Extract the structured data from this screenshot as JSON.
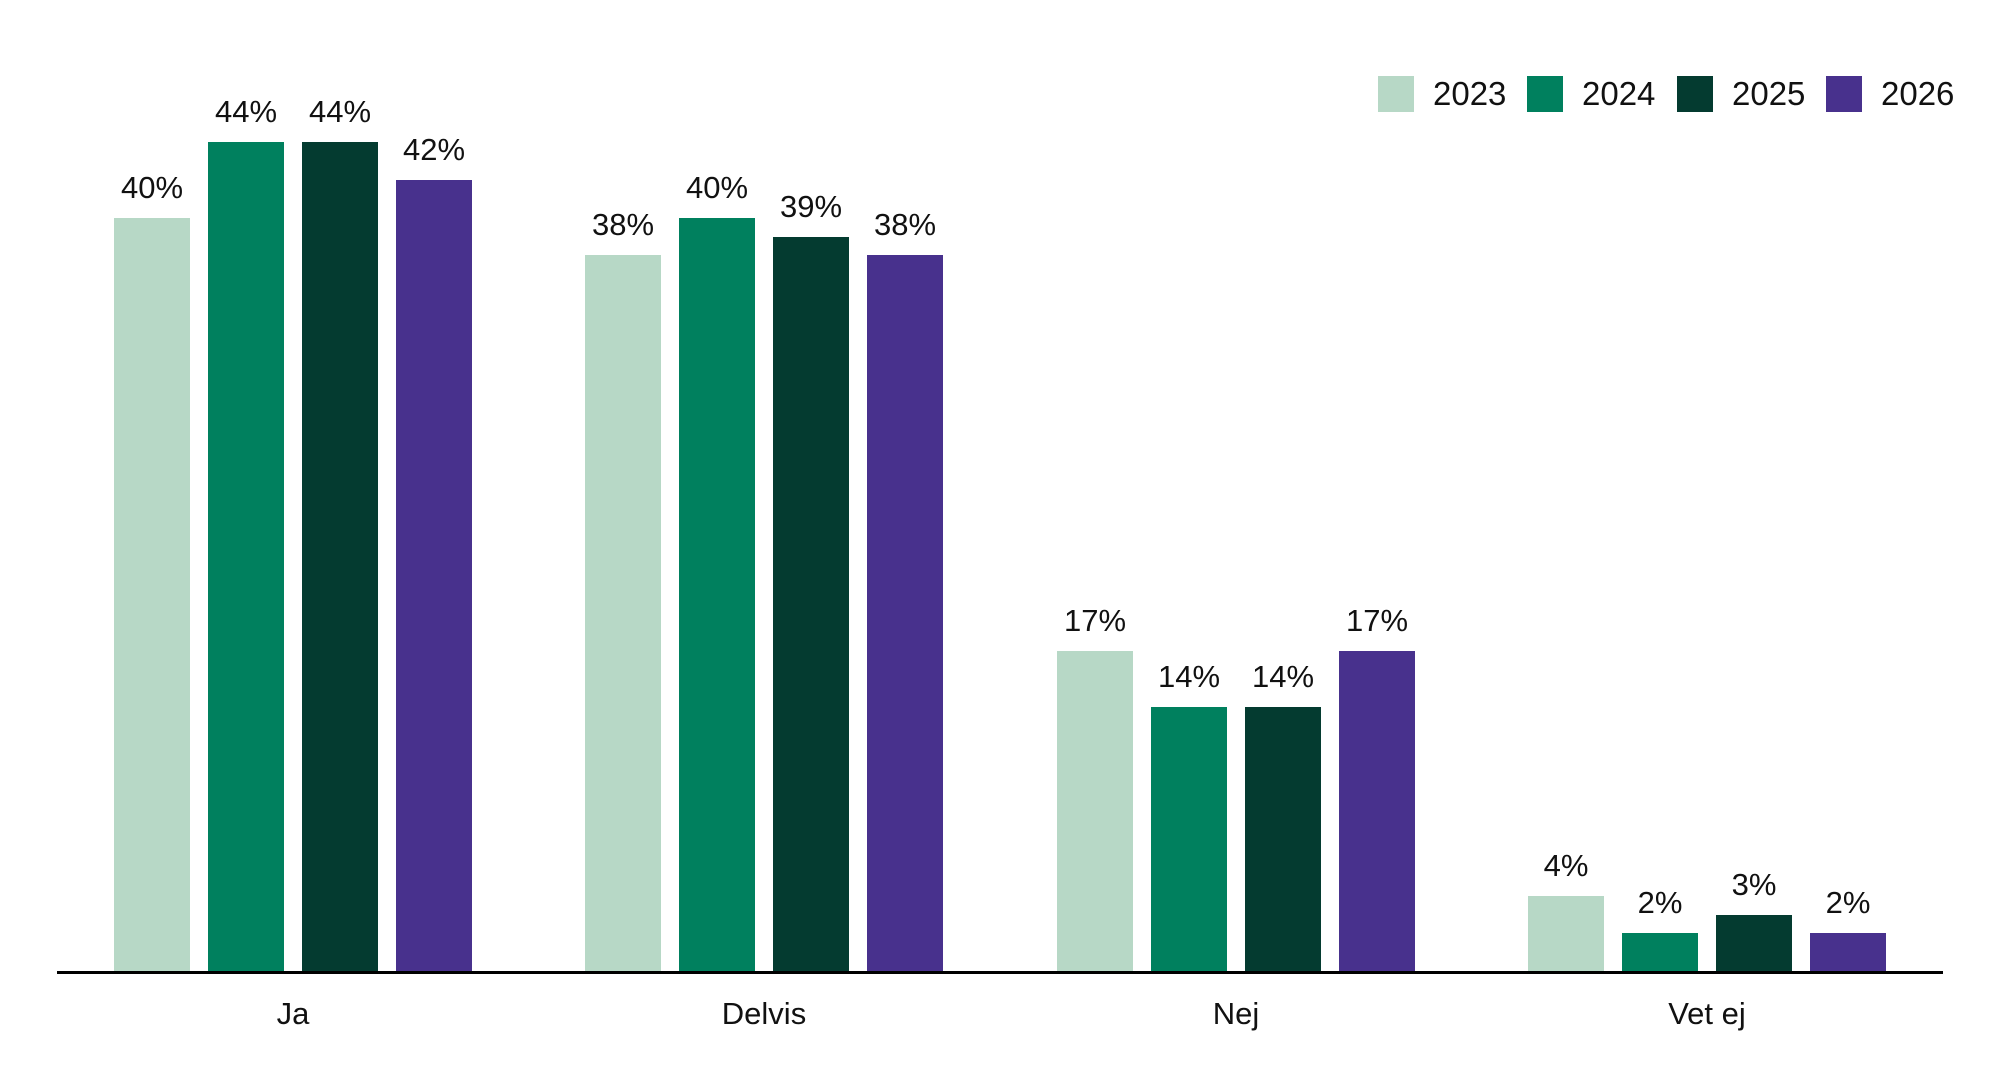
{
  "chart_data": {
    "type": "bar",
    "title": "",
    "xlabel": "",
    "ylabel": "",
    "value_suffix": "%",
    "categories": [
      "Ja",
      "Delvis",
      "Nej",
      "Vet ej"
    ],
    "series": [
      {
        "name": "2023",
        "color": "#b7d8c6",
        "values": [
          40,
          38,
          17,
          4
        ]
      },
      {
        "name": "2024",
        "color": "#00805e",
        "values": [
          44,
          40,
          14,
          2
        ]
      },
      {
        "name": "2025",
        "color": "#043b30",
        "values": [
          44,
          39,
          14,
          3
        ]
      },
      {
        "name": "2026",
        "color": "#48318d",
        "values": [
          42,
          38,
          17,
          2
        ]
      }
    ],
    "data_labels": [
      [
        "40%",
        "38%",
        "17%",
        "4%"
      ],
      [
        "44%",
        "40%",
        "14%",
        "2%"
      ],
      [
        "44%",
        "39%",
        "14%",
        "3%"
      ],
      [
        "42%",
        "38%",
        "17%",
        "2%"
      ]
    ],
    "ylim": [
      0,
      50
    ],
    "grid": false,
    "y_axis_visible": false,
    "legend_position": "top-right",
    "axis_line_color": "#000000",
    "label_color": "#111111",
    "background_color": "#ffffff"
  }
}
